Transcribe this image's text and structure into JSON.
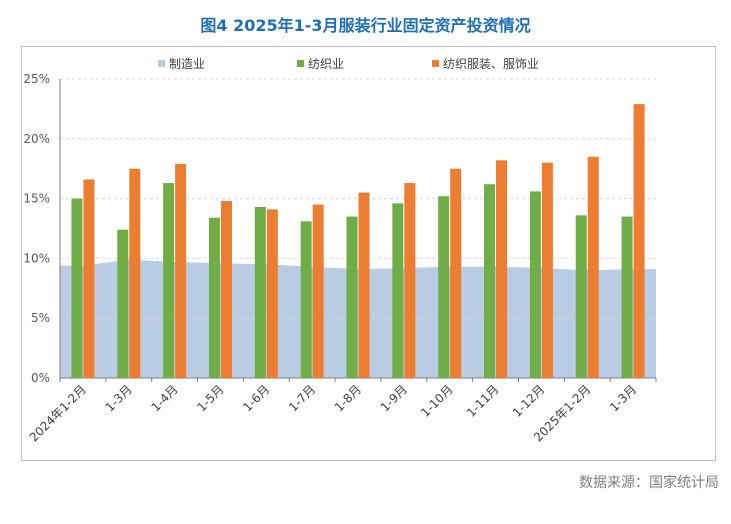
{
  "title": "图4 2025年1-3月服装行业固定资产投资情况",
  "source": "数据来源：国家统计局",
  "chart_data": {
    "type": "bar",
    "categories": [
      "2024年1-2月",
      "1-3月",
      "1-4月",
      "1-5月",
      "1-6月",
      "1-7月",
      "1-8月",
      "1-9月",
      "1-10月",
      "1-11月",
      "1-12月",
      "2025年1-2月",
      "1-3月"
    ],
    "series": [
      {
        "name": "制造业",
        "kind": "area",
        "color": "#b8cce4",
        "values": [
          9.4,
          9.9,
          9.7,
          9.6,
          9.5,
          9.3,
          9.1,
          9.2,
          9.3,
          9.3,
          9.2,
          9.0,
          9.1
        ]
      },
      {
        "name": "纺织业",
        "kind": "bar",
        "color": "#70ad47",
        "values": [
          15.0,
          12.4,
          16.3,
          13.4,
          14.3,
          13.1,
          13.5,
          14.6,
          15.2,
          16.2,
          15.6,
          13.6,
          13.5
        ]
      },
      {
        "name": "纺织服装、服饰业",
        "kind": "bar",
        "color": "#ed7d31",
        "values": [
          16.6,
          17.5,
          17.9,
          14.8,
          14.1,
          14.5,
          15.5,
          16.3,
          17.5,
          18.2,
          18.0,
          18.5,
          22.9
        ]
      }
    ],
    "yticks": [
      "0%",
      "5%",
      "10%",
      "15%",
      "20%",
      "25%"
    ],
    "ylim": [
      0,
      25
    ],
    "grid": true,
    "legend": "top"
  }
}
